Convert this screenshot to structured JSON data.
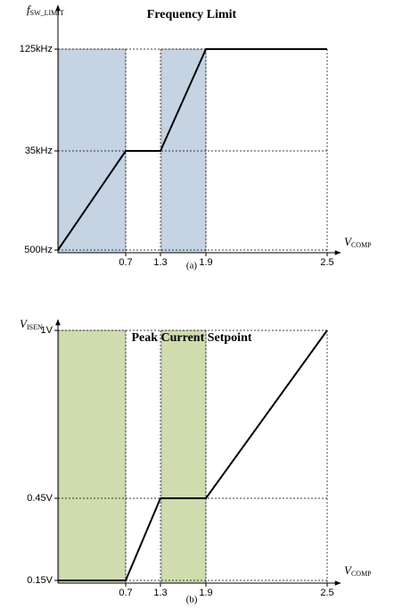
{
  "chart_data": [
    {
      "type": "line",
      "title": "Frequency Limit",
      "caption": "(a)",
      "x_label": "V",
      "x_label_sub": "COMP",
      "y_label": "f",
      "y_label_sub": "SW_LIMIT",
      "x": [
        0,
        0.7,
        1.3,
        1.9,
        2.5
      ],
      "series": [
        {
          "color": "#000000",
          "values": [
            500,
            35000,
            35000,
            125000,
            125000
          ]
        }
      ],
      "bands": [
        [
          0,
          0.7
        ],
        [
          1.3,
          1.9
        ]
      ],
      "band_color": "#c5d3e3",
      "xlim": [
        0,
        2.5
      ],
      "xticks": [
        0.7,
        1.3,
        1.9,
        2.5
      ],
      "ylim": [
        500,
        125000
      ],
      "yticks": [
        {
          "value": 500,
          "label": "500Hz"
        },
        {
          "value": 35000,
          "label": "35kHz"
        },
        {
          "value": 125000,
          "label": "125kHz"
        }
      ],
      "grid": true
    },
    {
      "type": "line",
      "title": "Peak Current Setpoint",
      "caption": "(b)",
      "x_label": "V",
      "x_label_sub": "COMP",
      "y_label": "V",
      "y_label_sub": "ISEN",
      "x": [
        0,
        0.7,
        1.3,
        1.9,
        2.5
      ],
      "series": [
        {
          "color": "#000000",
          "values": [
            0.15,
            0.15,
            0.45,
            0.45,
            1
          ]
        }
      ],
      "bands": [
        [
          0,
          0.7
        ],
        [
          1.3,
          1.9
        ]
      ],
      "band_color": "#cfdcae",
      "xlim": [
        0,
        2.5
      ],
      "xticks": [
        0.7,
        1.3,
        1.9,
        2.5
      ],
      "ylim": [
        0.15,
        1
      ],
      "yticks": [
        {
          "value": 0.15,
          "label": "0.15V"
        },
        {
          "value": 0.45,
          "label": "0.45V"
        },
        {
          "value": 1,
          "label": "1V"
        }
      ],
      "grid": true
    }
  ]
}
